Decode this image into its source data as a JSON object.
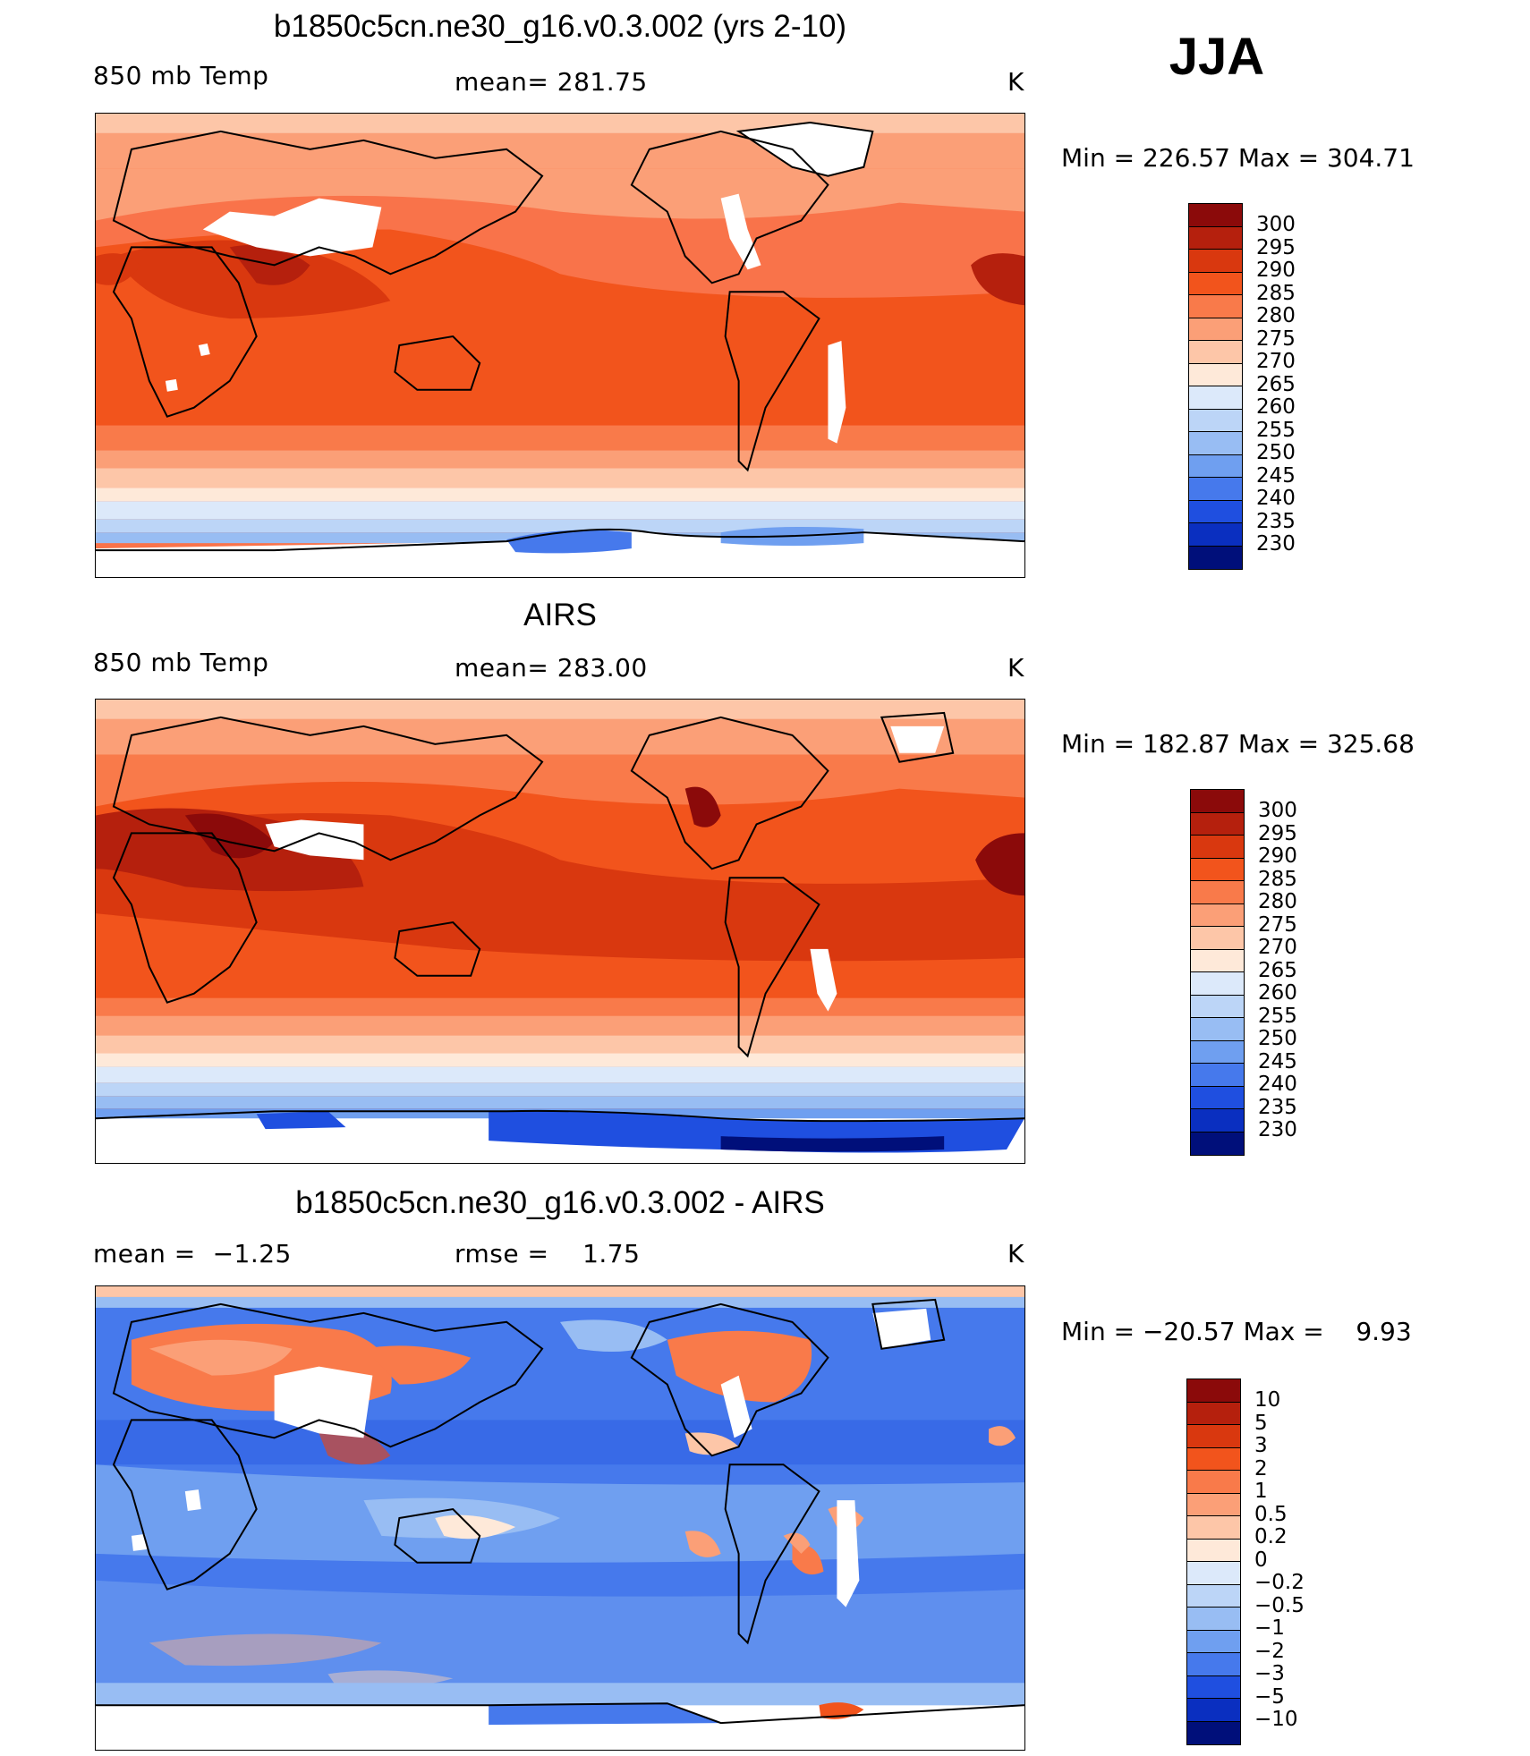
{
  "season": "JJA",
  "panels": [
    {
      "title": "b1850c5cn.ne30_g16.v0.3.002 (yrs 2-10)",
      "left_label": "850 mb Temp",
      "center_label": "mean= 281.75",
      "units": "K",
      "range_text": "Min = 226.57 Max = 304.71"
    },
    {
      "title": "AIRS",
      "left_label": "850 mb Temp",
      "center_label": "mean= 283.00",
      "units": "K",
      "range_text": "Min = 182.87 Max = 325.68"
    },
    {
      "title": "b1850c5cn.ne30_g16.v0.3.002 - AIRS",
      "left_label": "mean =  −1.25",
      "center_label": "rmse =    1.75",
      "units": "K",
      "range_text": "Min = −20.57 Max =    9.93"
    }
  ],
  "colorbar_temp": {
    "labels": [
      "300",
      "295",
      "290",
      "285",
      "280",
      "275",
      "270",
      "265",
      "260",
      "255",
      "250",
      "245",
      "240",
      "235",
      "230"
    ],
    "colors": [
      "#8b0a0a",
      "#b5200d",
      "#d9380f",
      "#f2541c",
      "#f97a4a",
      "#fb9f77",
      "#fdc6a8",
      "#fee9d9",
      "#dce9fa",
      "#bcd5f7",
      "#98bdf3",
      "#6f9ff0",
      "#4679ec",
      "#1f4fe0",
      "#0a2fc0",
      "#000f7a"
    ]
  },
  "colorbar_diff": {
    "labels": [
      "10",
      "5",
      "3",
      "2",
      "1",
      "0.5",
      "0.2",
      "0",
      "−0.2",
      "−0.5",
      "−1",
      "−2",
      "−3",
      "−5",
      "−10"
    ],
    "colors": [
      "#8b0a0a",
      "#b5200d",
      "#d9380f",
      "#f2541c",
      "#f97a4a",
      "#fb9f77",
      "#fdc6a8",
      "#fee9d9",
      "#dce9fa",
      "#bcd5f7",
      "#98bdf3",
      "#6f9ff0",
      "#4679ec",
      "#1f4fe0",
      "#0a2fc0",
      "#000f7a"
    ]
  },
  "map_colors": {
    "land_outline": "#000000",
    "missing": "#ffffff"
  }
}
